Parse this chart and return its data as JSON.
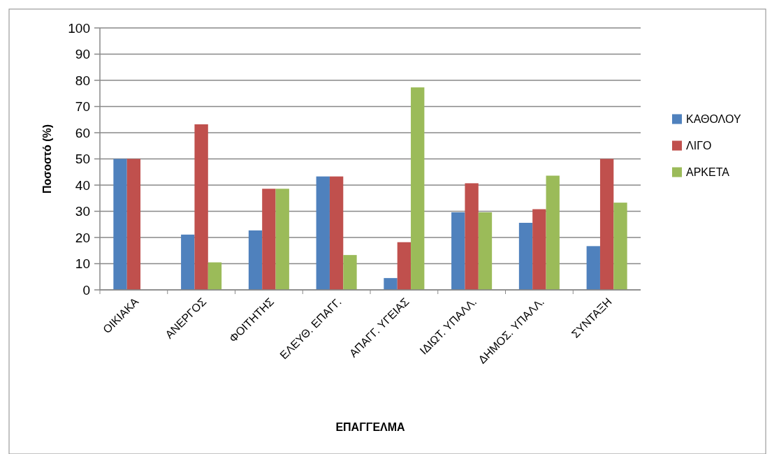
{
  "chart_data": {
    "type": "bar",
    "xlabel": "ΕΠΑΓΓΕΛΜΑ",
    "ylabel": "Ποσοστό (%)",
    "categories": [
      "ΟΙΚΙΑΚΑ",
      "ΑΝΕΡΓΟΣ",
      "ΦΟΙΤΗΤΗΣ",
      "ΕΛΕΥΘ. ΕΠΑΓΓ.",
      "ΑΠΑΓΓ. ΥΓΕΙΑΣ",
      "ΙΔΙΩΤ. ΥΠΑΛΛ.",
      "ΔΗΜΟΣ. ΥΠΑΛΛ.",
      "ΣΥΝΤΑΞΗ"
    ],
    "series": [
      {
        "name": "ΚΑΘΟΛΟΥ",
        "color": "#4f81bd",
        "values": [
          50,
          21.1,
          22.7,
          43.3,
          4.5,
          29.6,
          25.6,
          16.7
        ]
      },
      {
        "name": "ΛΙΓΟ",
        "color": "#c0504d",
        "values": [
          50,
          63.2,
          38.6,
          43.3,
          18.2,
          40.7,
          30.8,
          50
        ]
      },
      {
        "name": "ΑΡΚΕΤΑ",
        "color": "#9bbb59",
        "values": [
          0,
          10.5,
          38.6,
          13.3,
          77.3,
          29.6,
          43.6,
          33.3
        ]
      }
    ],
    "ylim": [
      0,
      100
    ],
    "yticks": [
      0,
      10,
      20,
      30,
      40,
      50,
      60,
      70,
      80,
      90,
      100
    ],
    "grid": "y",
    "legend": "right"
  }
}
